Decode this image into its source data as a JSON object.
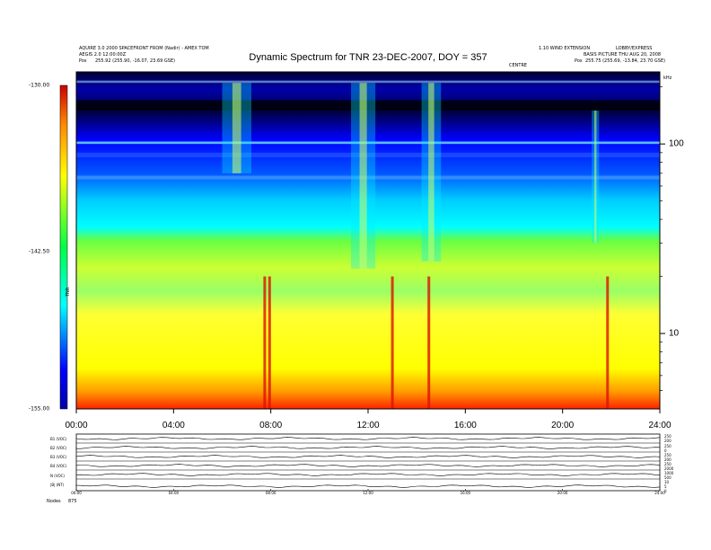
{
  "header": {
    "left_line1": "AQUIRE 3.0 2000 SPACEFRONT FROM (Nadir) - AMEX TOM",
    "left_line2": "AEGIS 2.0 12:00:00Z",
    "left_pos_label": "Pos",
    "left_pos_value": "255.92 (255.90, -16.07, 23.69 GSE)",
    "right_line1": "1.10 WIND EXTENSION",
    "right_line1b": "LOBBY/EXPRESS",
    "right_line2": "BASIS PICTURE THU AUG 20, 2008",
    "right_pos_label": "Pos",
    "right_pos_value": "255.75 (255.69, -13.84, 23.70 GSE)",
    "center_small": "CENTRE",
    "corner_unit": "kHz"
  },
  "chart_data": {
    "type": "heatmap",
    "title": "Dynamic Spectrum for TNR 23-DEC-2007, DOY = 357",
    "x_ticks": [
      "00:00",
      "04:00",
      "08:00",
      "12:00",
      "16:00",
      "20:00",
      "24:00"
    ],
    "x_range_hours": [
      0,
      24
    ],
    "y_ticks": [
      100,
      10
    ],
    "y_scale": "log",
    "y_range_khz": [
      4,
      240
    ],
    "colorbar": {
      "label": "TNR",
      "ticks": [
        "-130.00",
        "-142.50",
        "-155.00"
      ],
      "range": [
        -155,
        -130
      ],
      "colors": [
        "#cc0000",
        "#ff4400",
        "#ff9900",
        "#ffff00",
        "#66ff33",
        "#00ffff",
        "#0066ff",
        "#0000cc",
        "#000055"
      ]
    },
    "bursts": [
      {
        "start_h": 11.3,
        "end_h": 12.3,
        "top_khz": 210,
        "bottom_khz": 22
      },
      {
        "start_h": 14.2,
        "end_h": 15.0,
        "top_khz": 210,
        "bottom_khz": 24
      },
      {
        "start_h": 6.0,
        "end_h": 7.2,
        "top_khz": 210,
        "bottom_khz": 70
      },
      {
        "start_h": 21.2,
        "end_h": 21.5,
        "top_khz": 150,
        "bottom_khz": 30
      }
    ],
    "hot_spots_h": [
      7.75,
      7.95,
      13.0,
      14.5,
      21.85
    ]
  },
  "panels": {
    "left_labels": [
      "B1 (VOC)",
      "B2 (VOC)",
      "B3 (VOC)",
      "B4 (VOC)",
      "N (VOC)",
      "|B| (NT)"
    ],
    "right_labels": [
      [
        "250",
        "200"
      ],
      [
        "250",
        "0"
      ],
      [
        "250",
        "200"
      ],
      [
        "250",
        "2000"
      ],
      [
        "1000",
        "500"
      ],
      [
        "10",
        "5",
        "0"
      ]
    ],
    "x_ticks": [
      "00:00",
      "04:00",
      "08:00",
      "12:00",
      "16:00",
      "20:00",
      "24:00"
    ],
    "footer_label": "Nodes",
    "footer_value": "875"
  }
}
